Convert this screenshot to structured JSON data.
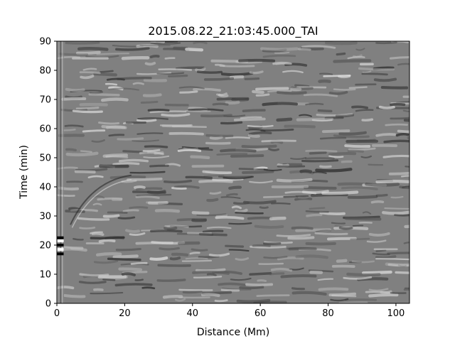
{
  "chart_data": {
    "type": "heatmap",
    "title": "2015.08.22_21:03:45.000_TAI",
    "xlabel": "Distance (Mm)",
    "ylabel": "Time (min)",
    "xlim": [
      0,
      104
    ],
    "ylim": [
      0,
      90
    ],
    "x_ticks": [
      0,
      20,
      40,
      60,
      80,
      100
    ],
    "y_ticks": [
      0,
      10,
      20,
      30,
      40,
      50,
      60,
      70,
      80,
      90
    ],
    "colormap": "gray",
    "grid": false,
    "legend": "none",
    "colors": {
      "background": "#808080",
      "axis": "#000000"
    }
  }
}
